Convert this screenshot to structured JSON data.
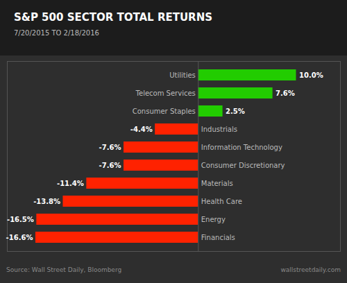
{
  "chart_data": {
    "type": "bar",
    "orientation": "horizontal",
    "title": "S&P 500 SECTOR TOTAL RETURNS",
    "subtitle": "7/20/2015 TO 2/18/2016",
    "categories": [
      "Utilities",
      "Telecom Services",
      "Consumer Staples",
      "Industrials",
      "Information Technology",
      "Consumer Discretionary",
      "Materials",
      "Health Care",
      "Energy",
      "Financials"
    ],
    "values": [
      10.0,
      7.6,
      2.5,
      -4.4,
      -7.6,
      -7.6,
      -11.4,
      -13.8,
      -16.5,
      -16.6
    ],
    "value_labels": [
      "10.0%",
      "7.6%",
      "2.5%",
      "-4.4%",
      "-7.6%",
      "-7.6%",
      "-11.4%",
      "-13.8%",
      "-16.5%",
      "-16.6%"
    ],
    "data_labels": true,
    "colors": [
      "#22cc00",
      "#22cc00",
      "#22cc00",
      "#ff2200",
      "#ff2200",
      "#ff2200",
      "#ff2200",
      "#ff2200",
      "#ff2200",
      "#ff2200"
    ],
    "xlim": [
      -19.5,
      14.5
    ],
    "tick_labels": false,
    "grid": false,
    "annotations": [
      "Source: Wall Street Daily, Bloomberg",
      "wallstreetdaily.com"
    ]
  }
}
